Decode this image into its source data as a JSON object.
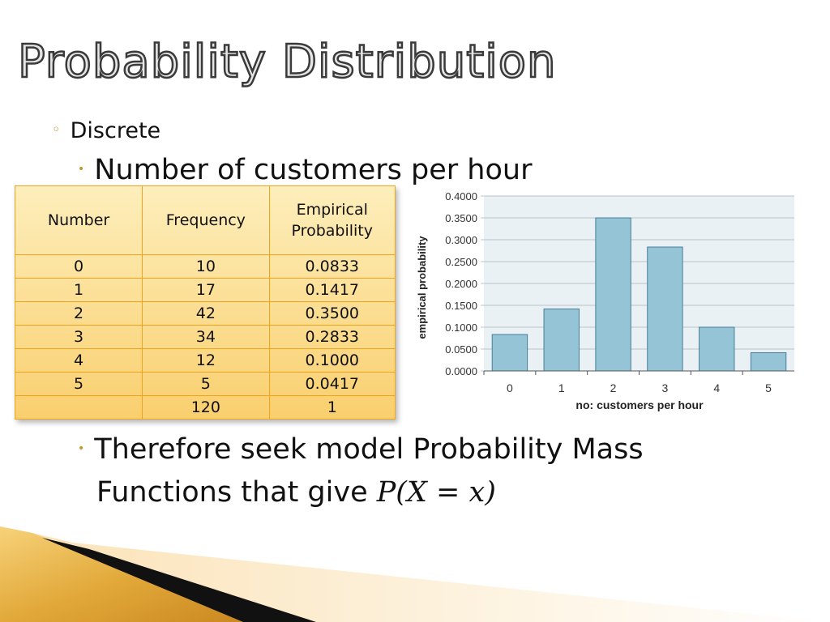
{
  "slide": {
    "title": "Probability Distribution",
    "bullet_level1": "Discrete",
    "bullet_level2": "Number of customers per hour",
    "conclusion_line1": "Therefore seek model Probability Mass",
    "conclusion_line2_prefix": "Functions that give ",
    "conclusion_math": "P(X = x)",
    "bullet_color": "#c4962c"
  },
  "table": {
    "headers": [
      "Number",
      "Frequency",
      "Empirical Probability"
    ],
    "header3_line1": "Empirical",
    "header3_line2": "Probability",
    "rows": [
      [
        "0",
        "10",
        "0.0833"
      ],
      [
        "1",
        "17",
        "0.1417"
      ],
      [
        "2",
        "42",
        "0.3500"
      ],
      [
        "3",
        "34",
        "0.2833"
      ],
      [
        "4",
        "12",
        "0.1000"
      ],
      [
        "5",
        "5",
        "0.0417"
      ],
      [
        "",
        "120",
        "1"
      ]
    ]
  },
  "chart_data": {
    "type": "bar",
    "categories": [
      "0",
      "1",
      "2",
      "3",
      "4",
      "5"
    ],
    "values": [
      0.0833,
      0.1417,
      0.35,
      0.2833,
      0.1,
      0.0417
    ],
    "xlabel": "no: customers per hour",
    "ylabel": "empirical probability",
    "ylim": [
      0,
      0.4
    ],
    "yticks": [
      "0.0000",
      "0.0500",
      "0.1000",
      "0.1500",
      "0.2000",
      "0.2500",
      "0.3000",
      "0.3500",
      "0.4000"
    ],
    "grid": true,
    "bar_color": "#94c4d6",
    "background_color": "#eaf1f5"
  }
}
